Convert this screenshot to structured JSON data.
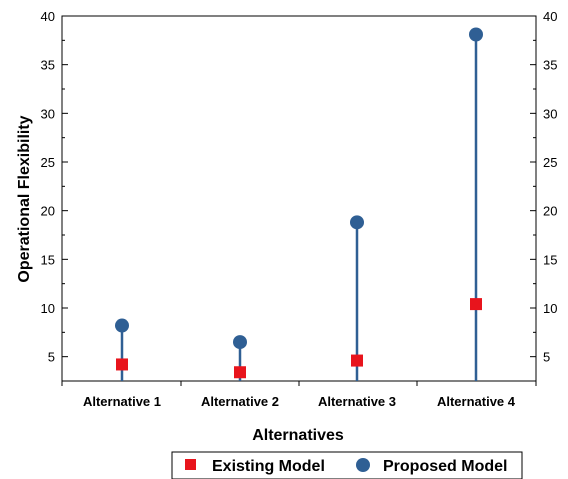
{
  "chart_data": {
    "type": "scatter",
    "title": "",
    "xlabel": "Alternatives",
    "ylabel": "Operational Flexibility",
    "categories": [
      "Alternative 1",
      "Alternative 2",
      "Alternative 3",
      "Alternative 4"
    ],
    "ylim": [
      2.5,
      40
    ],
    "yticks": [
      5,
      10,
      15,
      20,
      25,
      30,
      35,
      40
    ],
    "grid": false,
    "secondary_y_axis": true,
    "legend_position": "bottom",
    "series": [
      {
        "name": "Existing Model",
        "marker": "square",
        "color": "#e8141c",
        "values": [
          4.2,
          3.4,
          4.6,
          10.4
        ]
      },
      {
        "name": "Proposed Model",
        "marker": "circle",
        "color": "#2f5f94",
        "values": [
          8.2,
          6.5,
          18.8,
          38.1
        ]
      }
    ],
    "drop_line_color": "#2f5f94"
  }
}
